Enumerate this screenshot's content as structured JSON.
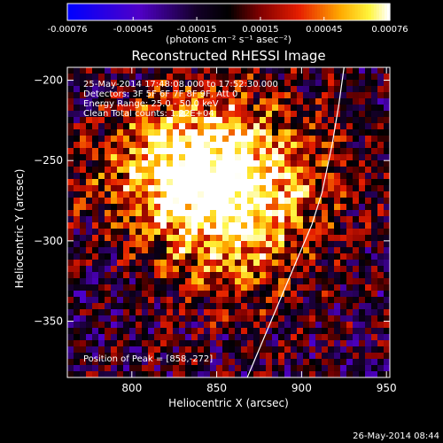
{
  "chart_data": {
    "type": "heatmap",
    "title": "Reconstructed RHESSI Image",
    "xlabel": "Heliocentric X (arcsec)",
    "ylabel": "Heliocentric Y (arcsec)",
    "xlim": [
      762,
      952
    ],
    "ylim": [
      -385,
      -192
    ],
    "x_ticks": [
      800,
      850,
      900,
      950
    ],
    "y_ticks": [
      -200,
      -250,
      -300,
      -350
    ],
    "colorbar": {
      "ticks": [
        "-0.00076",
        "-0.00045",
        "-0.00015",
        "0.00015",
        "0.00045",
        "0.00076"
      ],
      "range": [
        -0.00076,
        0.00076
      ],
      "unit_label": "(photons cm⁻² s⁻¹ asec⁻²)"
    },
    "annotations": {
      "time": "25-May-2014 17:48:08.000 to 17:52:30.000",
      "detectors": "Detectors: 3F 5F 6F 7F 8F 9F, Att 0",
      "energy": "Energy Range: 25.0 - 50.0 keV",
      "clean": "Clean    Total counts: 1.22E+04",
      "peak": "Position of Peak = [858,-272]"
    },
    "peak": {
      "x": 858,
      "y": -272
    },
    "limb_curve": [
      [
        868,
        -385
      ],
      [
        882,
        -350
      ],
      [
        898,
        -310
      ],
      [
        906,
        -290
      ],
      [
        912,
        -270
      ],
      [
        918,
        -240
      ],
      [
        922,
        -215
      ],
      [
        925,
        -192
      ]
    ]
  },
  "footer": {
    "timestamp": "26-May-2014 08:44"
  }
}
